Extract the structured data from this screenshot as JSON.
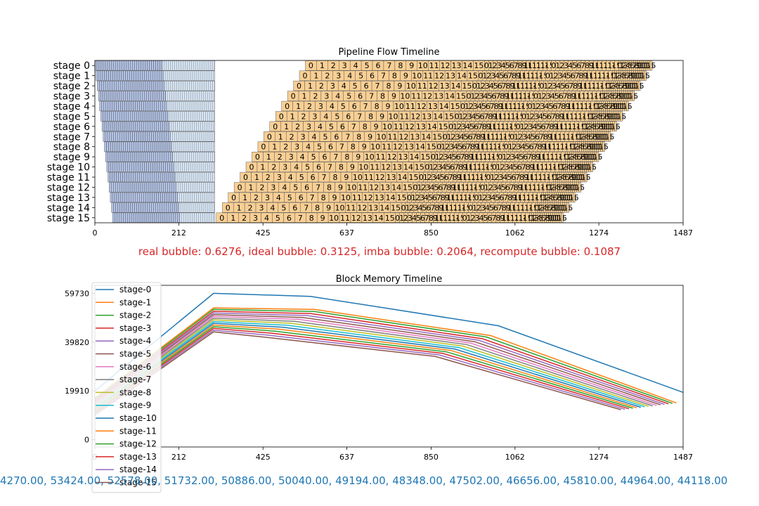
{
  "chart_data": [
    {
      "type": "timeline",
      "title": "Pipeline Flow Timeline",
      "xlim": [
        0,
        1487
      ],
      "x_ticks": [
        0,
        212,
        425,
        637,
        850,
        1062,
        1274,
        1487
      ],
      "y_categories": [
        "stage 0",
        "stage 1",
        "stage 2",
        "stage 3",
        "stage 4",
        "stage 5",
        "stage 6",
        "stage 7",
        "stage 8",
        "stage 9",
        "stage 10",
        "stage 11",
        "stage 12",
        "stage 13",
        "stage 14",
        "stage 15"
      ],
      "forward_blocks_per_stage": 32,
      "forward_block_width": 5.3,
      "forward_start_step": 3,
      "forward_end": 303,
      "backward_start_stage0": 532,
      "backward_start_step": -15,
      "backward_labels": [
        "0",
        "1",
        "2",
        "3",
        "4",
        "5",
        "6",
        "7",
        "8",
        "9",
        "10",
        "11",
        "12",
        "13",
        "14",
        "15",
        "0",
        "1",
        "2",
        "3",
        "4",
        "5",
        "6",
        "7",
        "8",
        "9",
        "10",
        "11",
        "12",
        "13",
        "14",
        "15",
        "0",
        "1",
        "2",
        "3",
        "4",
        "5",
        "6",
        "7",
        "8",
        "9",
        "10",
        "11",
        "12",
        "13",
        "14",
        "15",
        "0",
        "1",
        "2",
        "3",
        "4",
        "5",
        "6",
        "7",
        "8",
        "9",
        "10",
        "11",
        "12",
        "13",
        "14",
        "15"
      ],
      "backward_widths": [
        28.3,
        28.3,
        28.3,
        28.3,
        28.3,
        28.3,
        28.3,
        28.3,
        28.3,
        28.3,
        28.3,
        28.3,
        28.3,
        28.3,
        28.3,
        28.3,
        10.6,
        10.6,
        10.6,
        10.6,
        10.6,
        10.6,
        10.6,
        10.6,
        10.6,
        10.6,
        10.6,
        10.6,
        10.6,
        10.6,
        10.6,
        10.6,
        10.6,
        10.6,
        10.6,
        10.6,
        10.6,
        10.6,
        10.6,
        10.6,
        10.6,
        10.6,
        10.6,
        10.6,
        10.6,
        10.6,
        10.6,
        10.6,
        5.3,
        5.3,
        5.3,
        5.3,
        5.3,
        5.3,
        5.3,
        5.3,
        5.3,
        5.3,
        5.3,
        5.3,
        5.3,
        5.3,
        5.3,
        5.3
      ],
      "colors": {
        "forward": "#b3c3e6",
        "recompute": "#d6e4f3",
        "backward": "#f8cf94",
        "edge": "#444444"
      },
      "annotation": "real bubble: 0.6276, ideal bubble: 0.3125, imba bubble: 0.2064, recompute bubble: 0.1087",
      "annotation_color": "#d62728"
    },
    {
      "type": "line",
      "title": "Block Memory Timeline",
      "xlim": [
        0,
        1487
      ],
      "ylim": [
        -3000,
        63000
      ],
      "x_ticks": [
        0,
        212,
        425,
        637,
        850,
        1062,
        1274,
        1487
      ],
      "y_ticks": [
        0,
        19910,
        39820,
        59730
      ],
      "legend": "upper-left",
      "series": [
        {
          "name": "stage-0",
          "color": "#1f77b4",
          "x": [
            0,
            300,
            545,
            1020,
            1487
          ],
          "y": [
            19910,
            59730,
            58500,
            46500,
            19300
          ]
        },
        {
          "name": "stage-1",
          "color": "#ff7f0e",
          "x": [
            0,
            300,
            555,
            1000,
            1470
          ],
          "y": [
            17000,
            53800,
            53200,
            42500,
            15000
          ]
        },
        {
          "name": "stage-2",
          "color": "#2ca02c",
          "x": [
            0,
            300,
            555,
            990,
            1460
          ],
          "y": [
            16500,
            53200,
            52300,
            41900,
            14800
          ]
        },
        {
          "name": "stage-3",
          "color": "#d62728",
          "x": [
            0,
            300,
            545,
            980,
            1450
          ],
          "y": [
            16000,
            52400,
            51500,
            41200,
            14600
          ]
        },
        {
          "name": "stage-4",
          "color": "#9467bd",
          "x": [
            0,
            300,
            535,
            970,
            1440
          ],
          "y": [
            15500,
            51700,
            50700,
            40600,
            14400
          ]
        },
        {
          "name": "stage-5",
          "color": "#8c564b",
          "x": [
            0,
            300,
            525,
            960,
            1430
          ],
          "y": [
            15000,
            51000,
            49900,
            40000,
            14200
          ]
        },
        {
          "name": "stage-6",
          "color": "#e377c2",
          "x": [
            0,
            300,
            515,
            950,
            1420
          ],
          "y": [
            14500,
            50300,
            49100,
            39400,
            14000
          ]
        },
        {
          "name": "stage-7",
          "color": "#7f7f7f",
          "x": [
            0,
            300,
            505,
            940,
            1410
          ],
          "y": [
            14000,
            49600,
            48300,
            38800,
            13800
          ]
        },
        {
          "name": "stage-8",
          "color": "#bcbd22",
          "x": [
            0,
            300,
            495,
            930,
            1400
          ],
          "y": [
            13500,
            48900,
            47500,
            38200,
            13600
          ]
        },
        {
          "name": "stage-9",
          "color": "#17becf",
          "x": [
            0,
            300,
            485,
            920,
            1390
          ],
          "y": [
            13000,
            48200,
            46700,
            37600,
            13400
          ]
        },
        {
          "name": "stage-10",
          "color": "#1f77b4",
          "x": [
            0,
            300,
            475,
            910,
            1380
          ],
          "y": [
            12500,
            47500,
            45900,
            37000,
            13200
          ]
        },
        {
          "name": "stage-11",
          "color": "#ff7f0e",
          "x": [
            0,
            300,
            465,
            900,
            1370
          ],
          "y": [
            12000,
            46800,
            45100,
            36400,
            13000
          ]
        },
        {
          "name": "stage-12",
          "color": "#2ca02c",
          "x": [
            0,
            300,
            455,
            890,
            1360
          ],
          "y": [
            11500,
            46100,
            44300,
            35800,
            12800
          ]
        },
        {
          "name": "stage-13",
          "color": "#d62728",
          "x": [
            0,
            300,
            445,
            880,
            1350
          ],
          "y": [
            11000,
            45400,
            43500,
            35200,
            12600
          ]
        },
        {
          "name": "stage-14",
          "color": "#9467bd",
          "x": [
            0,
            300,
            435,
            870,
            1340
          ],
          "y": [
            10500,
            44700,
            42700,
            34600,
            12400
          ]
        },
        {
          "name": "stage-15",
          "color": "#8c564b",
          "x": [
            0,
            300,
            425,
            860,
            1330
          ],
          "y": [
            10000,
            44000,
            41900,
            34000,
            12200
          ]
        }
      ],
      "annotation": "4270.00, 53424.00, 52578.00, 51732.00, 50886.00, 50040.00, 49194.00, 48348.00, 47502.00, 46656.00, 45810.00, 44964.00, 44118.00",
      "annotation_color": "#1f77b4"
    }
  ]
}
